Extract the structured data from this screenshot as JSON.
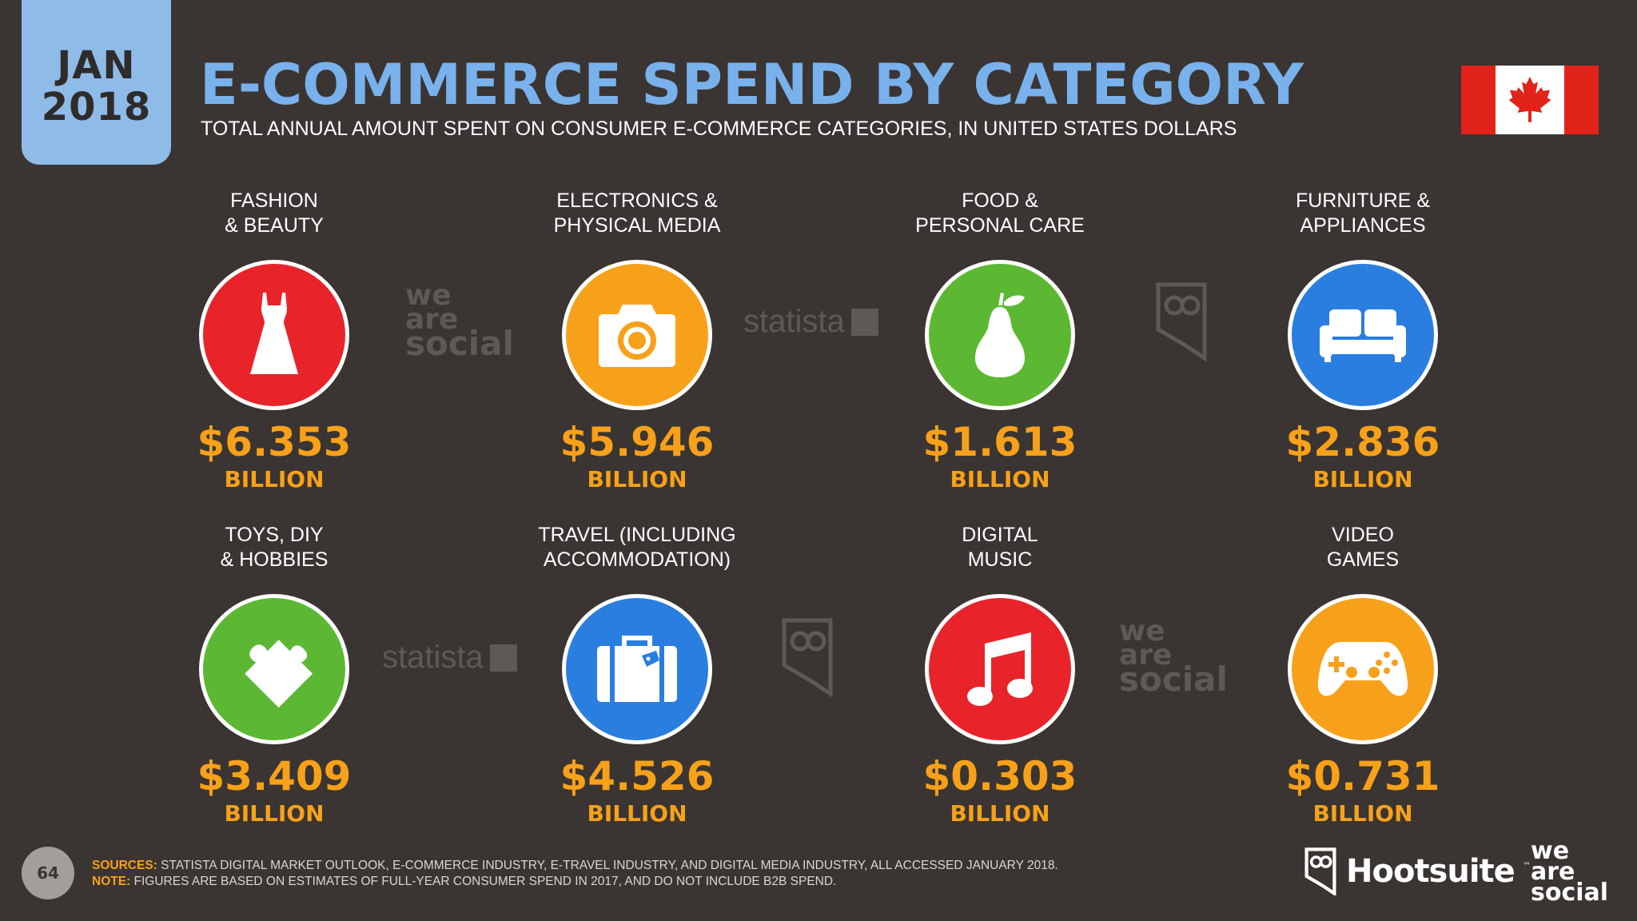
{
  "badge": {
    "month": "JAN",
    "year": "2018"
  },
  "header": {
    "title": "E-COMMERCE SPEND BY CATEGORY",
    "subtitle": "TOTAL ANNUAL AMOUNT SPENT ON CONSUMER E-COMMERCE CATEGORIES, IN UNITED STATES DOLLARS"
  },
  "flag": {
    "country": "Canada",
    "red": "#e2231a"
  },
  "colors": {
    "red": "#e8232a",
    "orange": "#f7a11a",
    "green": "#5cb833",
    "blue": "#2a7ee0",
    "value": "#f7a11a"
  },
  "categories": [
    {
      "label1": "FASHION",
      "label2": "& BEAUTY",
      "value": "$6.353",
      "unit": "BILLION",
      "icon": "dress-icon",
      "color": "#e8232a"
    },
    {
      "label1": "ELECTRONICS &",
      "label2": "PHYSICAL MEDIA",
      "value": "$5.946",
      "unit": "BILLION",
      "icon": "camera-icon",
      "color": "#f7a11a"
    },
    {
      "label1": "FOOD &",
      "label2": "PERSONAL CARE",
      "value": "$1.613",
      "unit": "BILLION",
      "icon": "pear-icon",
      "color": "#5cb833"
    },
    {
      "label1": "FURNITURE &",
      "label2": "APPLIANCES",
      "value": "$2.836",
      "unit": "BILLION",
      "icon": "sofa-icon",
      "color": "#2a7ee0"
    },
    {
      "label1": "TOYS, DIY",
      "label2": "& HOBBIES",
      "value": "$3.409",
      "unit": "BILLION",
      "icon": "puzzle-icon",
      "color": "#5cb833"
    },
    {
      "label1": "TRAVEL (INCLUDING",
      "label2": "ACCOMMODATION)",
      "value": "$4.526",
      "unit": "BILLION",
      "icon": "suitcase-icon",
      "color": "#2a7ee0"
    },
    {
      "label1": "DIGITAL",
      "label2": "MUSIC",
      "value": "$0.303",
      "unit": "BILLION",
      "icon": "music-note-icon",
      "color": "#e8232a"
    },
    {
      "label1": "VIDEO",
      "label2": "GAMES",
      "value": "$0.731",
      "unit": "BILLION",
      "icon": "gamepad-icon",
      "color": "#f7a11a"
    }
  ],
  "watermarks": {
    "was_line1": "we",
    "was_line2": "are",
    "was_line3": "social",
    "statista": "statista"
  },
  "footer": {
    "page": "64",
    "sources_label": "SOURCES:",
    "sources_text": "STATISTA DIGITAL MARKET OUTLOOK, E-COMMERCE INDUSTRY, E-TRAVEL INDUSTRY, AND DIGITAL MEDIA INDUSTRY, ALL ACCESSED JANUARY 2018.",
    "note_label": "NOTE:",
    "note_text": "FIGURES ARE BASED ON ESTIMATES OF FULL-YEAR CONSUMER SPEND IN 2017, AND DO NOT INCLUDE B2B SPEND.",
    "hootsuite": "Hootsuite",
    "tm": "™",
    "was_line1": "we",
    "was_line2": "are",
    "was_line3": "social"
  }
}
